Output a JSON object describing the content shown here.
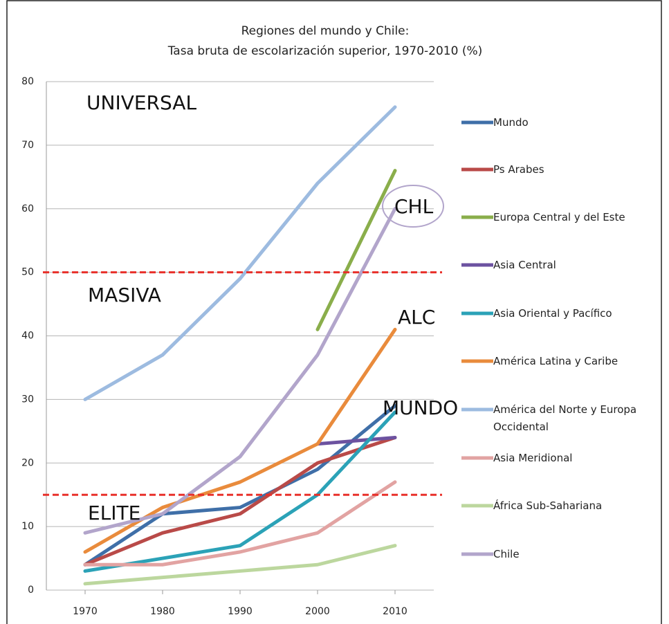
{
  "chart_data": {
    "type": "line",
    "title": [
      "Regiones del mundo y Chile:",
      "Tasa bruta de escolarización superior, 1970-2010 (%)"
    ],
    "x": [
      1970,
      1980,
      1990,
      2000,
      2010
    ],
    "xlim": [
      1965,
      2015
    ],
    "xticks": [
      1970,
      1980,
      1990,
      2000,
      2010
    ],
    "ylim": [
      0,
      80
    ],
    "yticks": [
      0,
      10,
      20,
      30,
      40,
      50,
      60,
      70,
      80
    ],
    "grid": true,
    "reference_lines": [
      50,
      15
    ],
    "reference_color": "#e8302a",
    "annotations": [
      "UNIVERSAL",
      "MASIVA",
      "ELITE",
      "CHL",
      "ALC",
      "MUNDO"
    ],
    "legend": "right",
    "series": [
      {
        "name": "Mundo",
        "color": "#3f6fa8",
        "values": [
          4,
          12,
          13,
          19,
          29
        ]
      },
      {
        "name": "Ps Arabes",
        "color": "#b94a48",
        "values": [
          4,
          9,
          12,
          20,
          24
        ]
      },
      {
        "name": "Europa Central y del Este",
        "color": "#8aae4b",
        "values": [
          null,
          null,
          null,
          41,
          66
        ]
      },
      {
        "name": "Asia Central",
        "color": "#6c52a0",
        "values": [
          null,
          null,
          null,
          23,
          24
        ]
      },
      {
        "name": "Asia Oriental y Pacífico",
        "color": "#2ba2b7",
        "values": [
          3,
          5,
          7,
          15,
          28
        ]
      },
      {
        "name": "América Latina y Caribe",
        "color": "#e98b3c",
        "values": [
          6,
          13,
          17,
          23,
          41
        ]
      },
      {
        "name": "América del Norte y Europa Occidental",
        "color": "#9dbbe0",
        "values": [
          30,
          37,
          49,
          64,
          76
        ]
      },
      {
        "name": "Asia Meridional",
        "color": "#e2a3a2",
        "values": [
          4,
          4,
          6,
          9,
          17
        ]
      },
      {
        "name": "África Sub-Sahariana",
        "color": "#bcd79e",
        "values": [
          1,
          2,
          3,
          4,
          7
        ]
      },
      {
        "name": "Chile",
        "color": "#b2a5cb",
        "values": [
          9,
          12,
          21,
          37,
          60
        ]
      }
    ]
  }
}
